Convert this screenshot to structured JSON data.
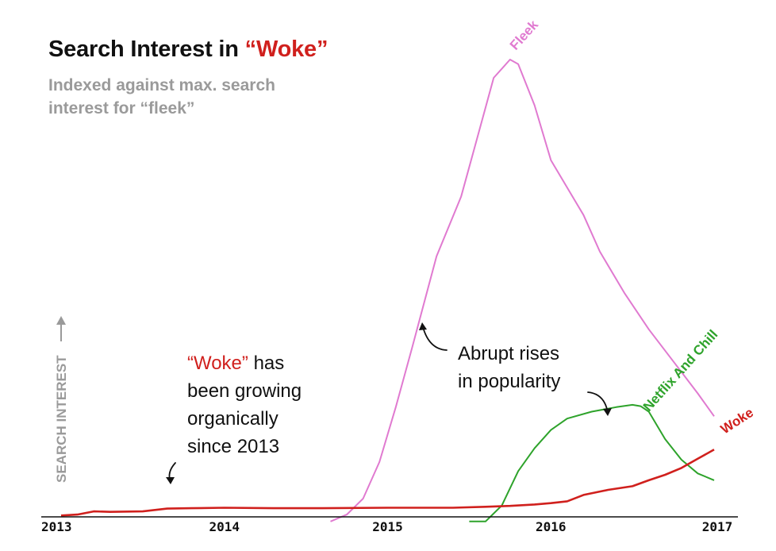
{
  "title": {
    "prefix": "Search Interest in ",
    "highlight": "“Woke”"
  },
  "subtitle": "Indexed against max. search interest for “fleek”",
  "annotations": {
    "woke_line1_highlight": "“Woke”",
    "woke_line1_rest": " has",
    "woke_line2": "been growing",
    "woke_line3": "organically",
    "woke_line4": "since 2013",
    "abrupt_line1": "Abrupt rises",
    "abrupt_line2": "in popularity"
  },
  "colors": {
    "woke": "#d0201d",
    "fleek": "#e07ad0",
    "netflix": "#2ea32b",
    "axis": "#111111",
    "ylabel": "#9a9a9a"
  },
  "chart_data": {
    "type": "line",
    "title": "Search Interest in “Woke”",
    "subtitle": "Indexed against max. search interest for “fleek”",
    "xlabel": "",
    "ylabel": "SEARCH INTEREST",
    "xlim": [
      2013.0,
      2017.0
    ],
    "ylim": [
      0,
      100
    ],
    "x_ticks": [
      "2013",
      "2014",
      "2015",
      "2016",
      "2017"
    ],
    "series": [
      {
        "name": "Woke",
        "key": "woke",
        "color": "#d0201d",
        "x": [
          2013.0,
          2013.1,
          2013.2,
          2013.3,
          2013.5,
          2013.65,
          2013.8,
          2014.0,
          2014.3,
          2014.6,
          2015.0,
          2015.4,
          2015.6,
          2015.75,
          2015.9,
          2016.0,
          2016.1,
          2016.2,
          2016.35,
          2016.5,
          2016.6,
          2016.7,
          2016.8,
          2016.9,
          2017.0
        ],
        "values": [
          0.3,
          0.5,
          1.2,
          1.1,
          1.2,
          1.8,
          1.9,
          2.0,
          1.9,
          1.9,
          2.0,
          2.0,
          2.2,
          2.4,
          2.7,
          3.0,
          3.4,
          4.8,
          5.9,
          6.7,
          8.0,
          9.2,
          10.7,
          12.7,
          14.7
        ]
      },
      {
        "name": "Fleek",
        "key": "fleek",
        "color": "#e07ad0",
        "x": [
          2014.65,
          2014.75,
          2014.85,
          2014.95,
          2015.05,
          2015.15,
          2015.3,
          2015.45,
          2015.55,
          2015.65,
          2015.75,
          2015.8,
          2015.9,
          2016.0,
          2016.1,
          2016.2,
          2016.3,
          2016.45,
          2016.6,
          2016.75,
          2016.9,
          2017.0
        ],
        "values": [
          -1,
          0.5,
          4,
          12,
          24,
          37,
          57,
          70,
          83,
          96,
          100,
          99,
          90,
          78,
          72,
          66,
          58,
          49,
          41,
          34,
          27,
          22
        ]
      },
      {
        "name": "Netflix And Chill",
        "key": "netflix",
        "color": "#2ea32b",
        "x": [
          2015.5,
          2015.6,
          2015.7,
          2015.8,
          2015.9,
          2016.0,
          2016.1,
          2016.25,
          2016.4,
          2016.5,
          2016.55,
          2016.6,
          2016.7,
          2016.8,
          2016.9,
          2017.0
        ],
        "values": [
          -1,
          -1,
          2.5,
          10,
          15,
          19,
          21.5,
          23,
          24,
          24.5,
          24.2,
          23,
          17,
          12.5,
          9.5,
          8
        ]
      }
    ],
    "series_labels": [
      "Fleek",
      "Netflix And Chill",
      "Woke"
    ]
  }
}
